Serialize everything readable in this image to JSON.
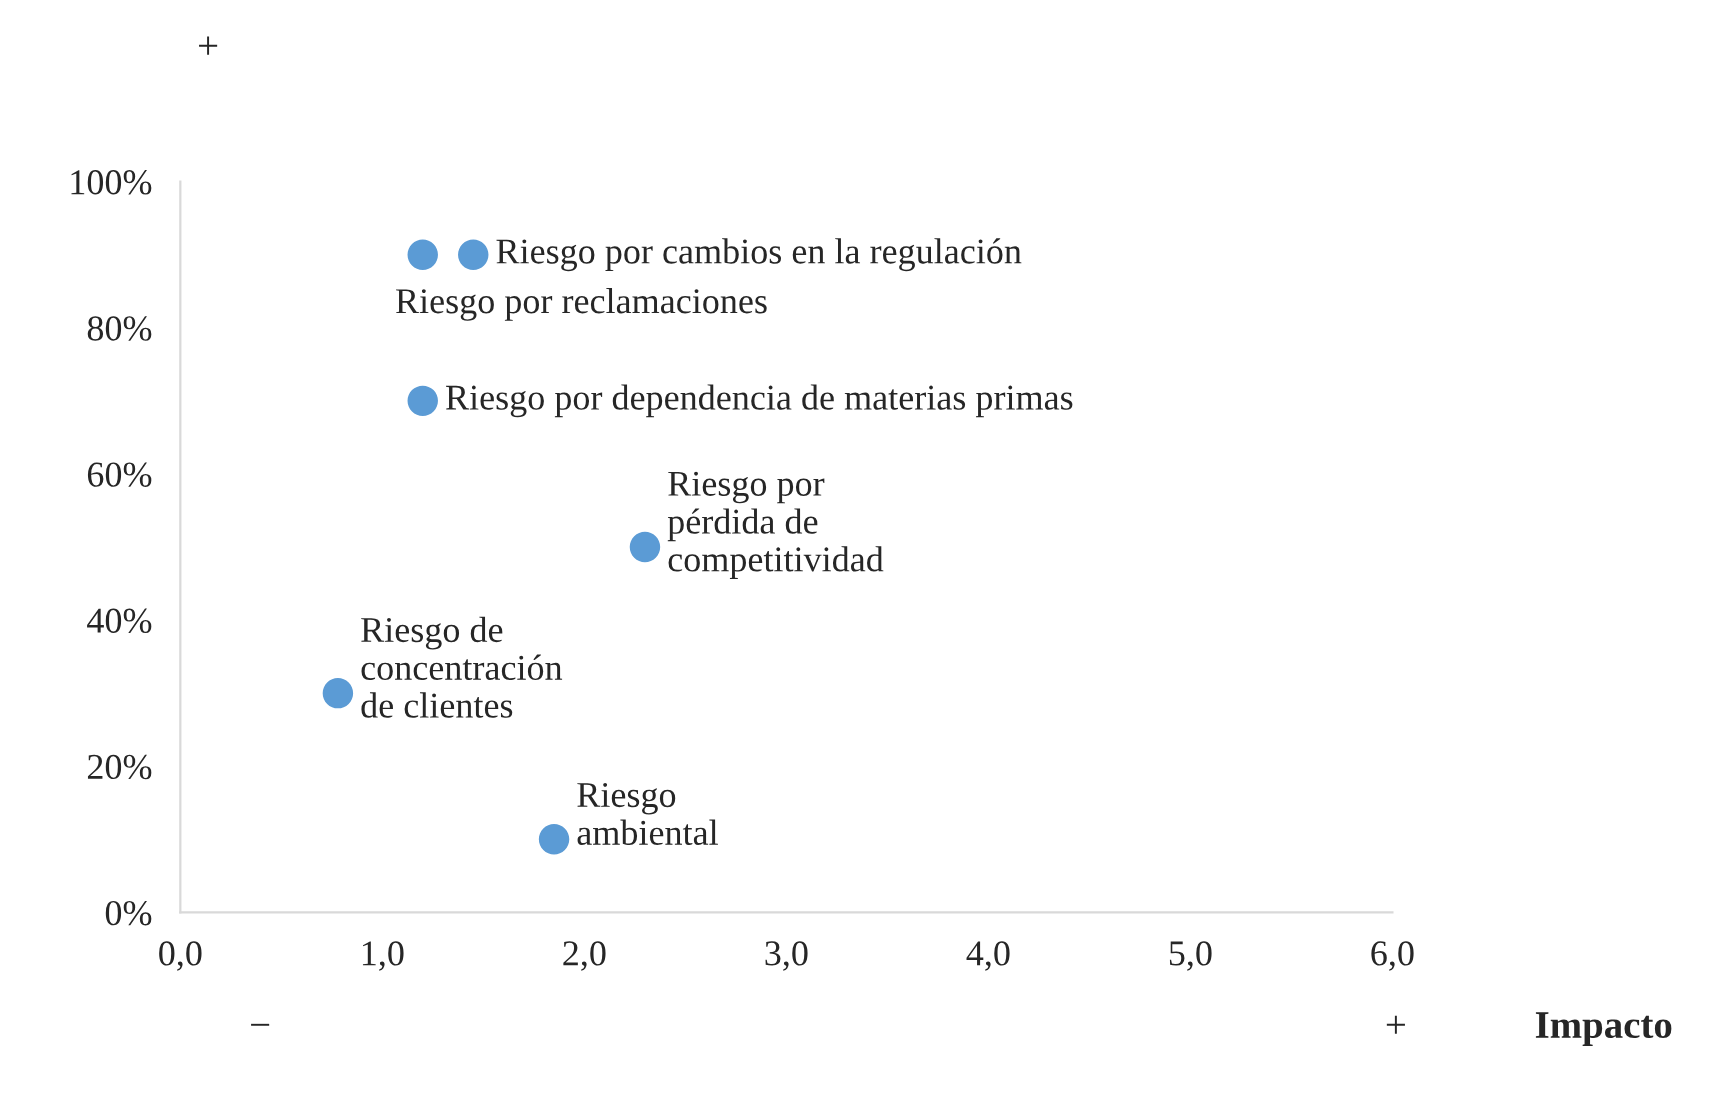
{
  "chart_data": {
    "type": "scatter",
    "xlabel": "Impacto",
    "x": [
      1.2,
      1.45,
      1.2,
      2.3,
      0.78,
      1.85
    ],
    "values": [
      90,
      90,
      70,
      50,
      30,
      10
    ],
    "color": "#5b9bd5",
    "marker": "circle",
    "grid": false,
    "legend": false,
    "xlim": [
      0,
      6
    ],
    "xticks": [
      {
        "value": 0,
        "label": "0,0"
      },
      {
        "value": 1,
        "label": "1,0"
      },
      {
        "value": 2,
        "label": "2,0"
      },
      {
        "value": 3,
        "label": "3,0"
      },
      {
        "value": 4,
        "label": "4,0"
      },
      {
        "value": 5,
        "label": "5,0"
      },
      {
        "value": 6,
        "label": "6,0"
      }
    ],
    "ylim": [
      0,
      100
    ],
    "yticks": [
      {
        "value": 0,
        "label": "0%"
      },
      {
        "value": 20,
        "label": "20%"
      },
      {
        "value": 40,
        "label": "40%"
      },
      {
        "value": 60,
        "label": "60%"
      },
      {
        "value": 80,
        "label": "80%"
      },
      {
        "value": 100,
        "label": "100%"
      }
    ],
    "annotations": [
      {
        "text": "Riesgo por reclamaciones",
        "x": 1.2,
        "y": 90
      },
      {
        "text": "Riesgo por cambios en la regulación",
        "x": 1.45,
        "y": 90
      },
      {
        "text": "Riesgo por dependencia de materias primas",
        "x": 1.2,
        "y": 70
      },
      {
        "text": "Riesgo por\npérdida de\ncompetitividad",
        "x": 2.3,
        "y": 50
      },
      {
        "text": "Riesgo de\nconcentración\nde clientes",
        "x": 0.78,
        "y": 30
      },
      {
        "text": "Riesgo\nambiental",
        "x": 1.85,
        "y": 10
      },
      "+",
      "−",
      "+"
    ]
  }
}
